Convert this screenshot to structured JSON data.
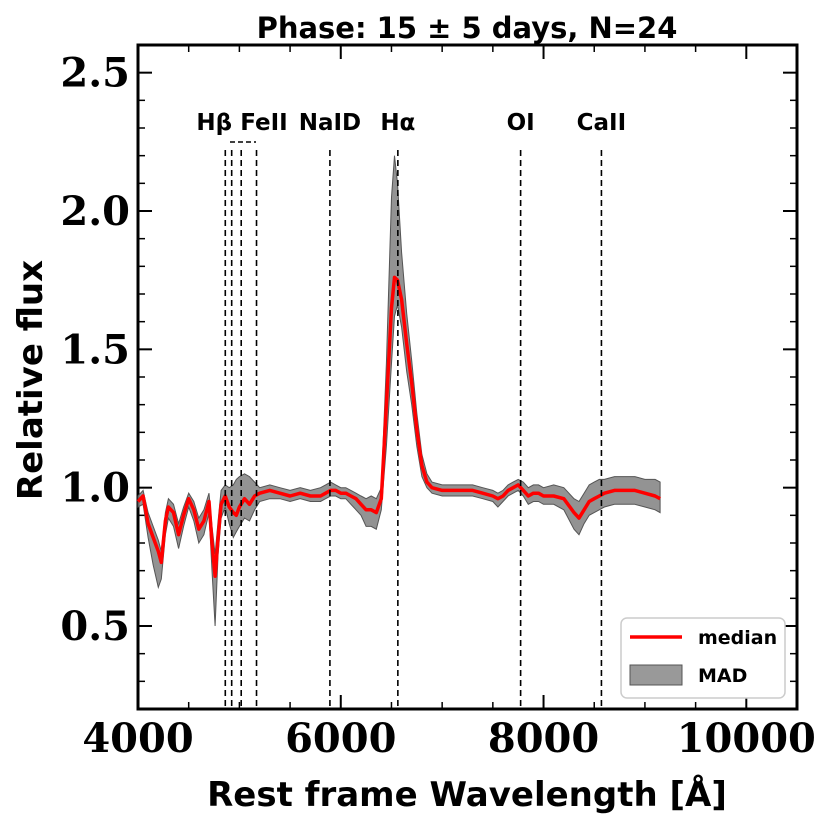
{
  "chart_data": {
    "type": "line",
    "title": "Phase: 15 ± 5 days, N=24",
    "xlabel": "Rest frame Wavelength [Å]",
    "ylabel": "Relative flux",
    "xlim": [
      4000,
      10500
    ],
    "ylim": [
      0.2,
      2.6
    ],
    "xticks": [
      4000,
      6000,
      8000,
      10000
    ],
    "xtick_labels": [
      "4000",
      "6000",
      "8000",
      "10000"
    ],
    "yticks": [
      0.5,
      1.0,
      1.5,
      2.0,
      2.5
    ],
    "ytick_labels": [
      "0.5",
      "1.0",
      "1.5",
      "2.0",
      "2.5"
    ],
    "lines": [
      {
        "name": "Hβ",
        "x": 4861,
        "label": "Hβ"
      },
      {
        "name": "FeII-1",
        "x": 4924
      },
      {
        "name": "FeII-2",
        "x": 5018
      },
      {
        "name": "FeII-3",
        "x": 5169
      },
      {
        "name": "NaID",
        "x": 5893,
        "label": "NaID"
      },
      {
        "name": "Hα",
        "x": 6563,
        "label": "Hα"
      },
      {
        "name": "OI",
        "x": 7774,
        "label": "OI"
      },
      {
        "name": "CaII",
        "x": 8571,
        "label": "CaII"
      }
    ],
    "feii_label": "FeII",
    "series": [
      {
        "name": "median",
        "color": "#ff0000",
        "x": [
          4000,
          4050,
          4100,
          4150,
          4200,
          4230,
          4270,
          4300,
          4350,
          4400,
          4450,
          4500,
          4550,
          4600,
          4650,
          4700,
          4730,
          4760,
          4790,
          4820,
          4860,
          4900,
          4940,
          4970,
          5000,
          5050,
          5100,
          5150,
          5200,
          5300,
          5400,
          5500,
          5600,
          5700,
          5800,
          5850,
          5900,
          5950,
          6000,
          6050,
          6100,
          6150,
          6200,
          6250,
          6300,
          6350,
          6400,
          6450,
          6500,
          6530,
          6560,
          6600,
          6650,
          6700,
          6750,
          6800,
          6850,
          6900,
          7000,
          7100,
          7200,
          7300,
          7400,
          7500,
          7550,
          7600,
          7650,
          7700,
          7750,
          7800,
          7850,
          7900,
          7950,
          8000,
          8100,
          8200,
          8300,
          8350,
          8400,
          8450,
          8500,
          8550,
          8600,
          8700,
          8800,
          8900,
          9000,
          9100,
          9150
        ],
        "values": [
          0.95,
          0.97,
          0.87,
          0.82,
          0.77,
          0.73,
          0.88,
          0.93,
          0.91,
          0.83,
          0.9,
          0.96,
          0.92,
          0.85,
          0.88,
          0.95,
          0.8,
          0.68,
          0.82,
          0.94,
          0.97,
          0.93,
          0.91,
          0.9,
          0.93,
          0.96,
          0.94,
          0.97,
          0.98,
          0.99,
          0.98,
          0.97,
          0.98,
          0.97,
          0.97,
          0.98,
          0.99,
          0.99,
          0.98,
          0.98,
          0.97,
          0.96,
          0.94,
          0.92,
          0.92,
          0.91,
          0.96,
          1.3,
          1.65,
          1.76,
          1.75,
          1.68,
          1.52,
          1.38,
          1.21,
          1.08,
          1.02,
          1.0,
          0.99,
          0.99,
          0.99,
          0.99,
          0.98,
          0.97,
          0.96,
          0.97,
          0.99,
          1.0,
          1.01,
          0.99,
          0.97,
          0.98,
          0.98,
          0.97,
          0.97,
          0.96,
          0.91,
          0.89,
          0.92,
          0.95,
          0.96,
          0.97,
          0.98,
          0.99,
          0.99,
          0.99,
          0.98,
          0.97,
          0.96
        ]
      }
    ],
    "band": {
      "name": "MAD",
      "color": "#808080",
      "x": [
        4000,
        4050,
        4100,
        4150,
        4200,
        4230,
        4270,
        4300,
        4350,
        4400,
        4450,
        4500,
        4550,
        4600,
        4650,
        4700,
        4730,
        4760,
        4790,
        4820,
        4860,
        4900,
        4940,
        4970,
        5000,
        5050,
        5100,
        5150,
        5200,
        5300,
        5400,
        5500,
        5600,
        5700,
        5800,
        5850,
        5900,
        5950,
        6000,
        6050,
        6100,
        6150,
        6200,
        6250,
        6300,
        6350,
        6400,
        6450,
        6500,
        6530,
        6560,
        6600,
        6650,
        6700,
        6750,
        6800,
        6850,
        6900,
        7000,
        7100,
        7200,
        7300,
        7400,
        7500,
        7550,
        7600,
        7650,
        7700,
        7750,
        7800,
        7850,
        7900,
        7950,
        8000,
        8100,
        8200,
        8300,
        8350,
        8400,
        8450,
        8500,
        8550,
        8600,
        8700,
        8800,
        8900,
        9000,
        9100,
        9150
      ],
      "upper": [
        0.97,
        0.99,
        0.91,
        0.86,
        0.81,
        0.77,
        0.91,
        0.96,
        0.94,
        0.87,
        0.93,
        0.98,
        0.95,
        0.89,
        0.92,
        0.98,
        0.86,
        0.76,
        0.88,
        0.99,
        1.01,
        1.0,
        1.01,
        1.03,
        1.04,
        1.05,
        1.04,
        1.02,
        1.0,
        1.01,
        1.0,
        0.99,
        1.0,
        0.99,
        1.0,
        1.01,
        1.02,
        1.01,
        1.0,
        1.0,
        0.99,
        0.98,
        0.97,
        0.96,
        0.97,
        0.96,
        1.0,
        1.45,
        2.05,
        2.2,
        2.1,
        1.85,
        1.63,
        1.46,
        1.27,
        1.12,
        1.05,
        1.02,
        1.01,
        1.01,
        1.01,
        1.01,
        1.0,
        0.99,
        0.98,
        0.99,
        1.01,
        1.02,
        1.03,
        1.02,
        1.0,
        1.01,
        1.01,
        1.0,
        1.01,
        1.0,
        0.96,
        0.95,
        0.98,
        1.01,
        1.02,
        1.03,
        1.03,
        1.04,
        1.04,
        1.04,
        1.03,
        1.03,
        1.02
      ],
      "lower": [
        0.93,
        0.94,
        0.82,
        0.72,
        0.64,
        0.67,
        0.83,
        0.89,
        0.86,
        0.78,
        0.86,
        0.93,
        0.88,
        0.8,
        0.83,
        0.91,
        0.7,
        0.5,
        0.76,
        0.89,
        0.93,
        0.87,
        0.82,
        0.84,
        0.86,
        0.89,
        0.88,
        0.92,
        0.95,
        0.96,
        0.96,
        0.95,
        0.96,
        0.95,
        0.95,
        0.96,
        0.97,
        0.97,
        0.96,
        0.96,
        0.94,
        0.92,
        0.9,
        0.86,
        0.86,
        0.85,
        0.92,
        1.15,
        1.45,
        1.62,
        1.66,
        1.58,
        1.42,
        1.3,
        1.15,
        1.04,
        1.0,
        0.98,
        0.97,
        0.97,
        0.97,
        0.97,
        0.96,
        0.95,
        0.93,
        0.95,
        0.97,
        0.98,
        0.99,
        0.97,
        0.94,
        0.95,
        0.95,
        0.94,
        0.94,
        0.92,
        0.85,
        0.83,
        0.87,
        0.9,
        0.91,
        0.92,
        0.93,
        0.94,
        0.94,
        0.94,
        0.93,
        0.92,
        0.91
      ]
    },
    "legend": {
      "position": "lower-right",
      "entries": [
        {
          "label": "median",
          "kind": "line",
          "color": "#ff0000"
        },
        {
          "label": "MAD",
          "kind": "patch",
          "color": "#999999"
        }
      ]
    }
  }
}
